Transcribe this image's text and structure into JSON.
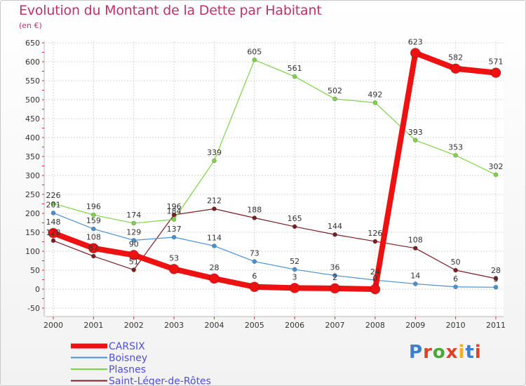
{
  "title": "Evolution du Montant de la Dette par Habitant",
  "subtitle": "(en €)",
  "logo": {
    "text": "Proxiti",
    "letter_colors": [
      "#3a7fd0",
      "#e0402a",
      "#4aa838",
      "#e0402a",
      "#f2b01e",
      "#3a7fd0",
      "#e0402a"
    ]
  },
  "chart_data": {
    "type": "line",
    "title": "Evolution du Montant de la Dette par Habitant",
    "ylabel": "(en €)",
    "xlabel": "",
    "x": [
      "2000",
      "2001",
      "2002",
      "2003",
      "2004",
      "2005",
      "2006",
      "2007",
      "2008",
      "2009",
      "2010",
      "2011"
    ],
    "ylim": [
      -50,
      650
    ],
    "yticks": [
      -50,
      0,
      50,
      100,
      150,
      200,
      250,
      300,
      350,
      400,
      450,
      500,
      550,
      600,
      650
    ],
    "grid": true,
    "legend_position": "bottom-left",
    "series": [
      {
        "name": "Saint-Léger-de-Rôtes",
        "color": "#7a1f24",
        "width": 1.2,
        "marker": 3,
        "values": [
          128,
          87,
          51,
          196,
          212,
          188,
          165,
          144,
          126,
          108,
          50,
          28
        ],
        "labels": [
          "128",
          "87",
          "51",
          "196",
          "212",
          "188",
          "165",
          "144",
          "126",
          "108",
          "50",
          "28"
        ]
      },
      {
        "name": "Plasnes",
        "color": "#7ed34a",
        "width": 1.2,
        "marker": 3,
        "values": [
          226,
          196,
          174,
          184,
          339,
          605,
          561,
          502,
          492,
          393,
          353,
          302
        ],
        "labels": [
          "226",
          "196",
          "174",
          "184",
          "339",
          "605",
          "561",
          "502",
          "492",
          "393",
          "353",
          "302"
        ]
      },
      {
        "name": "Boisney",
        "color": "#4a90cf",
        "width": 1.2,
        "marker": 3,
        "values": [
          201,
          159,
          129,
          137,
          114,
          73,
          52,
          36,
          24,
          14,
          6,
          5
        ],
        "labels": [
          "201",
          "159",
          "129",
          "137",
          "114",
          "73",
          "52",
          "36",
          "24",
          "14",
          "6",
          "5"
        ]
      },
      {
        "name": "CARSIX",
        "color": "#ee1111",
        "width": 8,
        "marker": 7,
        "values": [
          148,
          108,
          90,
          53,
          28,
          6,
          3,
          2,
          0,
          623,
          582,
          571
        ],
        "labels": [
          "148",
          "108",
          "90",
          "53",
          "28",
          "6",
          "3",
          "2",
          "0",
          "623",
          "582",
          "571"
        ]
      }
    ],
    "legend": [
      "CARSIX",
      "Boisney",
      "Plasnes",
      "Saint-Léger-de-Rôtes"
    ]
  }
}
